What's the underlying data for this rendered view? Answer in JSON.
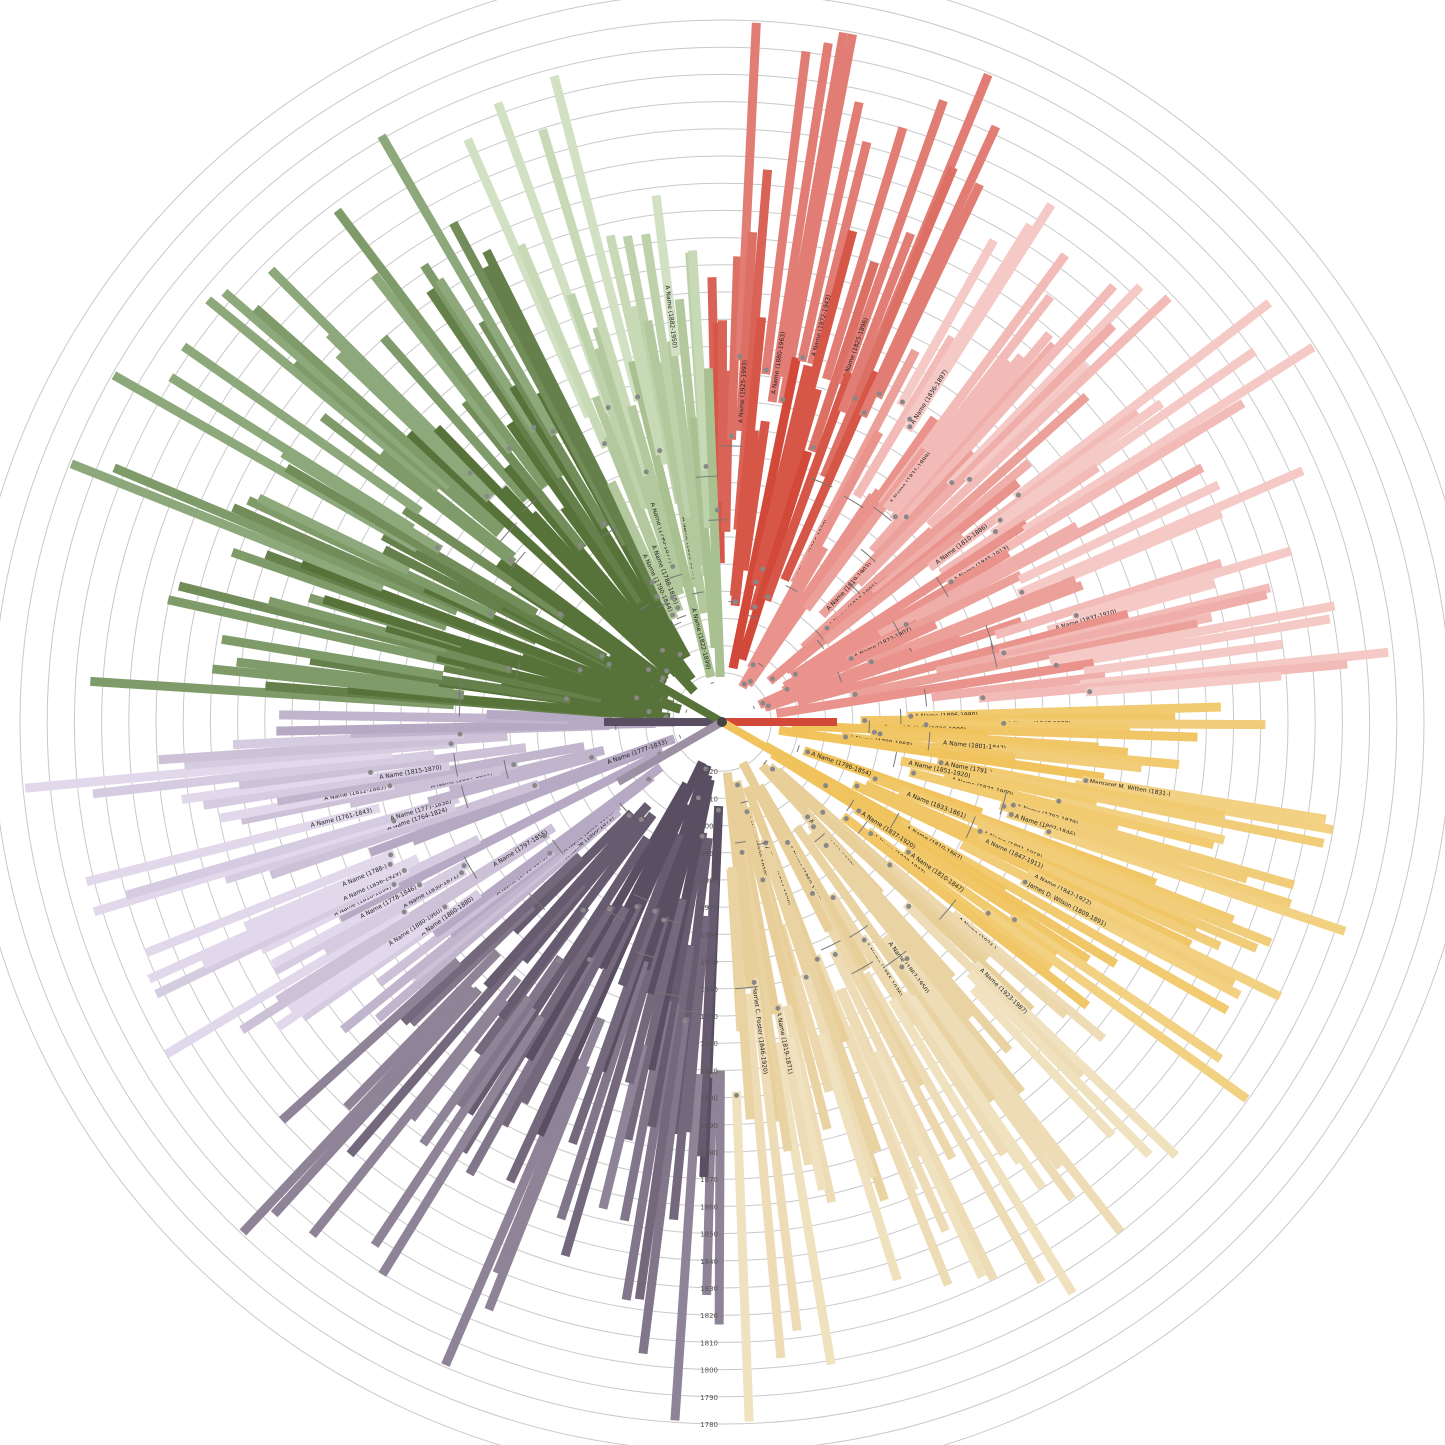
{
  "year_axis": [
    "2020",
    "2010",
    "2000",
    "1990",
    "1980",
    "1970",
    "1960",
    "1950",
    "1940",
    "1930",
    "1920",
    "1910",
    "1900",
    "1890",
    "1880",
    "1870",
    "1860",
    "1850",
    "1840",
    "1830",
    "1820",
    "1810",
    "1800",
    "1790",
    "1780",
    "1770",
    "1760"
  ],
  "colors": {
    "red": "#d2493a",
    "pink": "#f2b8b4",
    "gold": "#f0c35c",
    "sand": "#efdcb0",
    "plum": "#5a4e63",
    "lavender": "#c9bfd3",
    "green": "#5e7e3c",
    "sage": "#c2d6ad"
  },
  "sectors": [
    {
      "name": "red",
      "color": "#d2493a",
      "tint": "#e58a82",
      "start": -2,
      "end": 26,
      "labels": [
        "A Name (1915-2001)",
        "A Name (1925-1993)",
        "A Name (1880-1963)",
        "A Name (1872-1943)",
        "A Name (1825-1896)"
      ]
    },
    {
      "name": "pink",
      "color": "#e9938c",
      "tint": "#f8d6d4",
      "start": 27,
      "end": 86,
      "labels": [
        "A Name (1856-1938)",
        "A Name (1836-1897)",
        "A Name (1831-1899)",
        "A Name (1819-1903)",
        "A Name (1814-1891)",
        "A Name (1810-1886)",
        "A Name (1845-1913)",
        "A Name (1822-1907)",
        "A Name (1843-1926)",
        "A Name (1837-1910)"
      ]
    },
    {
      "name": "gold",
      "color": "#f0c35c",
      "tint": "#f4d48c",
      "start": 88,
      "end": 128,
      "labels": [
        "A Name (1896-1980)",
        "A Name (1847-1927)",
        "Conrad P. Hale (1826-1900)",
        "A Name (1892-1873)",
        "A Name (1801-1847)",
        "A Name (1780-1868)",
        "Margaret M. Witten (1831-)",
        "A Name (1791-)",
        "A Name (1851-1920)",
        "A Name (1821-1900)",
        "A Name (1792-1879)",
        "A Name (1802-1846)",
        "A Name (1796-1854)",
        "A Name (1833-1861)",
        "A Name (1891-1918)",
        "A Name (1847-1911)",
        "A Name (1842-1922)",
        "James D. Wilson (1809-1891)",
        "A Name (1810-1867)",
        "A Name (1826-1916)",
        "A Name (1837-1920)",
        "A Name (1810-1847)",
        "A Name (1820-1847)"
      ]
    },
    {
      "name": "sand",
      "color": "#e8cf9a",
      "tint": "#f2e5c8",
      "start": 129,
      "end": 178,
      "labels": [
        "A Name (1924-)",
        "A Name (1923-1987)",
        "A Name (1890-1967)",
        "A Name (1867-1950)",
        "A Name (1855-1936)",
        "A Name (1850-1913)",
        "A Name (1836-1931)",
        "A Name (1834-1920)",
        "A Name (1829-1910)",
        "A Name (1819-1871)",
        "Harriet C. Foster (1846-1920)"
      ]
    },
    {
      "name": "plum",
      "color": "#5a4e63",
      "tint": "#9b90a4",
      "start": 180,
      "end": 228,
      "labels": []
    },
    {
      "name": "lavender",
      "color": "#b6a9c3",
      "tint": "#ece4f5",
      "start": 229,
      "end": 272,
      "labels": [
        "A Name (1800-1871)",
        "A Name (1835-1896)",
        "A Name (1798-1873)",
        "A Name (1860-1880)",
        "A Name (1880-1960)",
        "A Name (1797-1855)",
        "A Name (1830-1871)",
        "A Name (1778-1846)",
        "A Name (1816-1894)",
        "A Name (1856-1929)",
        "A Name (1788-)",
        "A Name (1818-1870)",
        "A Name (1777-1833)",
        "A Name (1764-1824)",
        "A Name (1777-1838)",
        "A Name (1761-1843)",
        "A Name (1857-1890)",
        "A Name (1812-1885)",
        "A Name (1815-1870)"
      ]
    },
    {
      "name": "green",
      "color": "#57733a",
      "tint": "#9bb58a",
      "start": 273,
      "end": 334,
      "labels": []
    },
    {
      "name": "sage",
      "color": "#a9c191",
      "tint": "#dce9cf",
      "start": 335,
      "end": 358,
      "labels": [
        "A Name (1790-1844)",
        "A Name (1788-1855)",
        "A Name (1790-1877)",
        "A Name (1822-1899)",
        "A Name (1851-1947)",
        "A Name (1882-1950)"
      ]
    }
  ]
}
